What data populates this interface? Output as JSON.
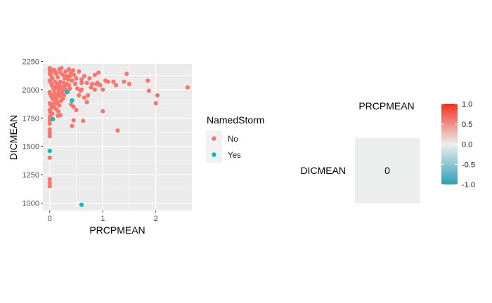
{
  "chart_data": [
    {
      "type": "scatter",
      "xlabel": "PRCPMEAN",
      "ylabel": "DICMEAN",
      "xlim": [
        -0.13,
        2.68
      ],
      "ylim": [
        935,
        2228
      ],
      "x_ticks": [
        0,
        1,
        2
      ],
      "y_ticks": [
        1000,
        1250,
        1500,
        1750,
        2000,
        2250
      ],
      "grid": true,
      "legend": {
        "title": "NamedStorm",
        "position": "right",
        "entries": [
          {
            "label": "No",
            "color": "#F8766D"
          },
          {
            "label": "Yes",
            "color": "#00BFC4"
          }
        ]
      },
      "series": [
        {
          "name": "No",
          "color": "#F8766D",
          "points": [
            [
              0.0,
              2190
            ],
            [
              0.0,
              2170
            ],
            [
              0.01,
              2180
            ],
            [
              0.02,
              2150
            ],
            [
              0.0,
              2140
            ],
            [
              0.03,
              2120
            ],
            [
              0.05,
              2100
            ],
            [
              0.08,
              2175
            ],
            [
              0.1,
              2160
            ],
            [
              0.12,
              2140
            ],
            [
              0.15,
              2110
            ],
            [
              0.18,
              2180
            ],
            [
              0.2,
              2150
            ],
            [
              0.22,
              2190
            ],
            [
              0.25,
              2130
            ],
            [
              0.28,
              2100
            ],
            [
              0.3,
              2160
            ],
            [
              0.33,
              2120
            ],
            [
              0.36,
              2180
            ],
            [
              0.4,
              2150
            ],
            [
              0.42,
              2080
            ],
            [
              0.46,
              2130
            ],
            [
              0.5,
              2100
            ],
            [
              0.55,
              2160
            ],
            [
              0.6,
              2090
            ],
            [
              0.65,
              2120
            ],
            [
              0.7,
              2060
            ],
            [
              0.75,
              2100
            ],
            [
              0.8,
              2050
            ],
            [
              0.85,
              2130
            ],
            [
              0.0,
              2080
            ],
            [
              0.02,
              2060
            ],
            [
              0.04,
              2040
            ],
            [
              0.06,
              2020
            ],
            [
              0.08,
              2000
            ],
            [
              0.1,
              2070
            ],
            [
              0.12,
              2030
            ],
            [
              0.14,
              2050
            ],
            [
              0.16,
              2010
            ],
            [
              0.18,
              2040
            ],
            [
              0.2,
              2070
            ],
            [
              0.22,
              2020
            ],
            [
              0.24,
              1990
            ],
            [
              0.26,
              2060
            ],
            [
              0.28,
              2030
            ],
            [
              0.3,
              2000
            ],
            [
              0.32,
              2050
            ],
            [
              0.34,
              1980
            ],
            [
              0.36,
              2040
            ],
            [
              0.38,
              2010
            ],
            [
              0.0,
              1980
            ],
            [
              0.01,
              1960
            ],
            [
              0.03,
              1940
            ],
            [
              0.05,
              1920
            ],
            [
              0.07,
              1950
            ],
            [
              0.09,
              1970
            ],
            [
              0.11,
              1930
            ],
            [
              0.13,
              1910
            ],
            [
              0.15,
              1960
            ],
            [
              0.17,
              1990
            ],
            [
              0.19,
              1940
            ],
            [
              0.21,
              1900
            ],
            [
              0.23,
              1970
            ],
            [
              0.25,
              1920
            ],
            [
              0.27,
              1950
            ],
            [
              0.0,
              1880
            ],
            [
              0.02,
              1860
            ],
            [
              0.04,
              1840
            ],
            [
              0.06,
              1870
            ],
            [
              0.08,
              1850
            ],
            [
              0.1,
              1890
            ],
            [
              0.12,
              1830
            ],
            [
              0.14,
              1880
            ],
            [
              0.16,
              1810
            ],
            [
              0.18,
              1860
            ],
            [
              0.0,
              1820
            ],
            [
              0.01,
              1800
            ],
            [
              0.03,
              1780
            ],
            [
              0.0,
              1760
            ],
            [
              0.05,
              1790
            ],
            [
              0.15,
              1770
            ],
            [
              0.2,
              1775
            ],
            [
              0.0,
              1730
            ],
            [
              0.0,
              1700
            ],
            [
              0.0,
              1650
            ],
            [
              0.0,
              1620
            ],
            [
              0.0,
              1590
            ],
            [
              0.0,
              1400
            ],
            [
              0.0,
              1210
            ],
            [
              0.0,
              1180
            ],
            [
              0.0,
              1150
            ],
            [
              0.4,
              1870
            ],
            [
              0.45,
              1850
            ],
            [
              0.5,
              1820
            ],
            [
              0.42,
              1680
            ],
            [
              0.45,
              1730
            ],
            [
              0.63,
              1725
            ],
            [
              0.55,
              1950
            ],
            [
              0.6,
              2000
            ],
            [
              0.65,
              1930
            ],
            [
              0.7,
              1890
            ],
            [
              0.72,
              1950
            ],
            [
              0.78,
              2020
            ],
            [
              0.9,
              2060
            ],
            [
              0.92,
              2150
            ],
            [
              0.95,
              2040
            ],
            [
              1.0,
              2000
            ],
            [
              1.0,
              1810
            ],
            [
              1.05,
              2080
            ],
            [
              1.1,
              2070
            ],
            [
              1.2,
              2070
            ],
            [
              1.25,
              2040
            ],
            [
              1.28,
              1640
            ],
            [
              1.4,
              2070
            ],
            [
              1.45,
              2140
            ],
            [
              1.5,
              2050
            ],
            [
              1.85,
              2080
            ],
            [
              1.87,
              1990
            ],
            [
              2.0,
              1880
            ],
            [
              2.03,
              1950
            ],
            [
              2.6,
              2020
            ],
            [
              0.85,
              2000
            ],
            [
              0.88,
              2050
            ],
            [
              0.6,
              2060
            ],
            [
              0.48,
              2050
            ],
            [
              0.52,
              2010
            ],
            [
              0.58,
              1990
            ],
            [
              0.35,
              2090
            ],
            [
              0.38,
              2120
            ],
            [
              0.44,
              2170
            ]
          ]
        },
        {
          "name": "Yes",
          "color": "#00BFC4",
          "points": [
            [
              0.0,
              1460
            ],
            [
              0.06,
              1740
            ],
            [
              0.32,
              1980
            ],
            [
              0.42,
              1905
            ],
            [
              0.6,
              985
            ]
          ]
        }
      ]
    },
    {
      "type": "heatmap",
      "columns": [
        "PRCPMEAN"
      ],
      "rows": [
        "DICMEAN"
      ],
      "values": [
        [
          0
        ]
      ],
      "cell_labels": [
        [
          "0"
        ]
      ],
      "legend": {
        "position": "right",
        "range": [
          -1,
          1
        ],
        "ticks": [
          "1.0",
          "0.5",
          "0.0",
          "-0.5",
          "-1.0"
        ],
        "colors": {
          "low": "#2E9FB5",
          "mid": "#ECEEEE",
          "high": "#F0311E"
        }
      }
    }
  ]
}
